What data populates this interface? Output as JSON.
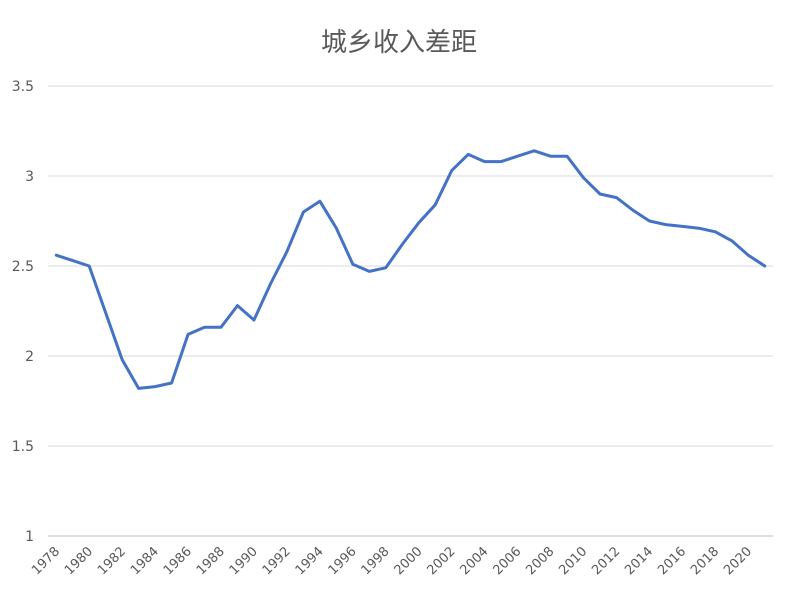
{
  "chart_data": {
    "type": "line",
    "title": "城乡收入差距",
    "xlabel": "",
    "ylabel": "",
    "ylim": [
      1,
      3.5
    ],
    "yticks": [
      "1",
      "1.5",
      "2",
      "2.5",
      "3",
      "3.5"
    ],
    "x": [
      1978,
      1979,
      1980,
      1981,
      1982,
      1983,
      1984,
      1985,
      1986,
      1987,
      1988,
      1989,
      1990,
      1991,
      1992,
      1993,
      1994,
      1995,
      1996,
      1997,
      1998,
      1999,
      2000,
      2001,
      2002,
      2003,
      2004,
      2005,
      2006,
      2007,
      2008,
      2009,
      2010,
      2011,
      2012,
      2013,
      2014,
      2015,
      2016,
      2017,
      2018,
      2019,
      2020,
      2021
    ],
    "xtick_labels": [
      "1978",
      "1980",
      "1982",
      "1984",
      "1986",
      "1988",
      "1990",
      "1992",
      "1994",
      "1996",
      "1998",
      "2000",
      "2002",
      "2004",
      "2006",
      "2008",
      "2010",
      "2012",
      "2014",
      "2016",
      "2018",
      "2020"
    ],
    "series": [
      {
        "values": [
          2.56,
          2.53,
          2.5,
          2.24,
          1.98,
          1.82,
          1.83,
          1.85,
          2.12,
          2.16,
          2.16,
          2.28,
          2.2,
          2.4,
          2.58,
          2.8,
          2.86,
          2.71,
          2.51,
          2.47,
          2.49,
          2.62,
          2.74,
          2.84,
          3.03,
          3.12,
          3.08,
          3.08,
          3.11,
          3.14,
          3.11,
          3.11,
          2.99,
          2.9,
          2.88,
          2.81,
          2.75,
          2.73,
          2.72,
          2.71,
          2.69,
          2.64,
          2.56,
          2.5
        ]
      }
    ],
    "grid": true,
    "legend": "none",
    "colors": {
      "line": "#4472c4",
      "grid": "#d9d9d9",
      "axis": "#bfbfbf",
      "text": "#595959"
    }
  }
}
